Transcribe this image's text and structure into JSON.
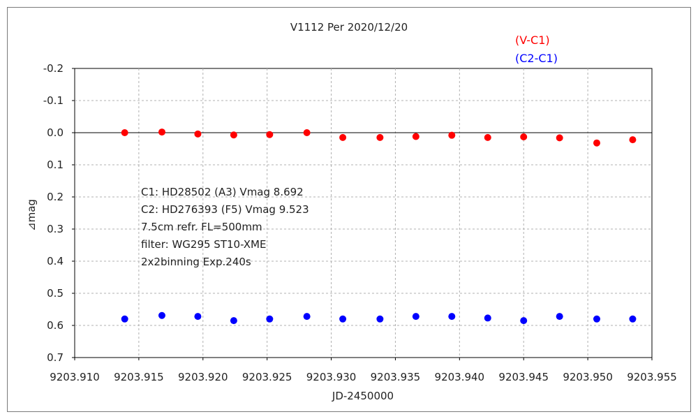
{
  "chart_data": {
    "type": "scatter",
    "title": "V1112 Per   2020/12/20",
    "xlabel": "JD-2450000",
    "ylabel": "⊿mag",
    "xlim": [
      9203.91,
      9203.955
    ],
    "ylim": [
      -0.2,
      0.7
    ],
    "y_inverted": true,
    "grid": true,
    "x_ticks": [
      "9203.910",
      "9203.915",
      "9203.920",
      "9203.925",
      "9203.930",
      "9203.935",
      "9203.940",
      "9203.945",
      "9203.950",
      "9203.955"
    ],
    "y_ticks": [
      "-0.2",
      "-0.1",
      "0.0",
      "0.1",
      "0.2",
      "0.3",
      "0.4",
      "0.5",
      "0.6",
      "0.7"
    ],
    "legend_position": "top-right",
    "series": [
      {
        "name": "(V-C1)",
        "color": "#ff0000",
        "x": [
          9203.9139,
          9203.9168,
          9203.9196,
          9203.9224,
          9203.9252,
          9203.9281,
          9203.9309,
          9203.9338,
          9203.9366,
          9203.9394,
          9203.9422,
          9203.945,
          9203.9478,
          9203.9507,
          9203.9535
        ],
        "y": [
          0.0,
          -0.002,
          0.004,
          0.007,
          0.006,
          0.0,
          0.015,
          0.015,
          0.012,
          0.008,
          0.015,
          0.013,
          0.016,
          0.032,
          0.022
        ]
      },
      {
        "name": "(C2-C1)",
        "color": "#0000ff",
        "x": [
          9203.9139,
          9203.9168,
          9203.9196,
          9203.9224,
          9203.9252,
          9203.9281,
          9203.9309,
          9203.9338,
          9203.9366,
          9203.9394,
          9203.9422,
          9203.945,
          9203.9478,
          9203.9507,
          9203.9535
        ],
        "y": [
          0.58,
          0.569,
          0.572,
          0.585,
          0.58,
          0.572,
          0.58,
          0.58,
          0.572,
          0.572,
          0.577,
          0.585,
          0.572,
          0.58,
          0.58
        ]
      }
    ],
    "annotation_lines": [
      "C1: HD28502 (A3) Vmag 8.692",
      "C2: HD276393 (F5) Vmag 9.523",
      "7.5cm refr. FL=500mm",
      "filter: WG295  ST10-XME",
      "2x2binning  Exp.240s"
    ]
  }
}
